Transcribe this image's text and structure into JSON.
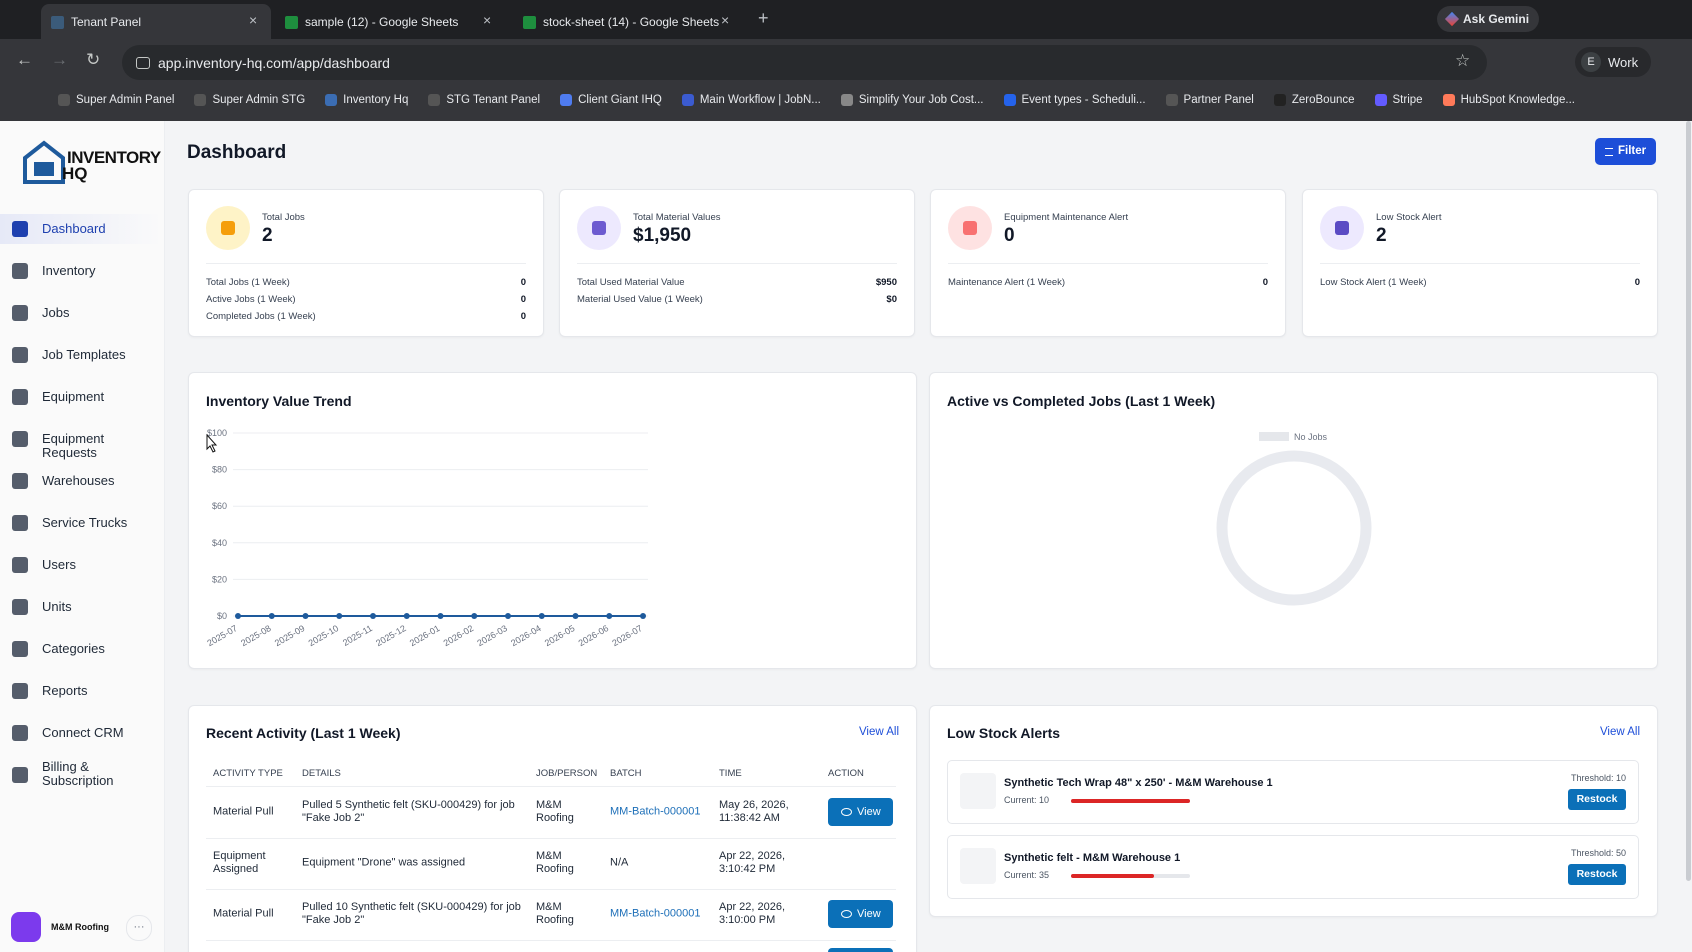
{
  "browser": {
    "tabs": [
      "Tenant Panel",
      "sample (12) - Google Sheets",
      "stock-sheet (14) - Google Sheets"
    ],
    "ask_gemini": "Ask Gemini",
    "url": "app.inventory-hq.com/app/dashboard",
    "profile_initial": "E",
    "profile_name": "Work",
    "bookmarks": [
      "Super Admin Panel",
      "Super Admin STG",
      "Inventory Hq",
      "STG Tenant Panel",
      "Client Giant IHQ",
      "Main Workflow | JobN...",
      "Simplify Your Job Cost...",
      "Event types - Scheduli...",
      "Partner Panel",
      "ZeroBounce",
      "Stripe",
      "HubSpot Knowledge..."
    ]
  },
  "sidebar": {
    "logo": [
      "INVENTORY",
      "HQ"
    ],
    "nav": [
      {
        "label": "Dashboard",
        "active": true
      },
      {
        "label": "Inventory"
      },
      {
        "label": "Jobs"
      },
      {
        "label": "Job Templates"
      },
      {
        "label": "Equipment"
      },
      {
        "label": "Equipment Requests"
      },
      {
        "label": "Warehouses"
      },
      {
        "label": "Service Trucks"
      },
      {
        "label": "Users"
      },
      {
        "label": "Units"
      },
      {
        "label": "Categories"
      },
      {
        "label": "Reports"
      },
      {
        "label": "Connect CRM"
      },
      {
        "label": "Billing & Subscription"
      }
    ],
    "user": "M&M Roofing"
  },
  "header": {
    "title": "Dashboard",
    "filter": "Filter"
  },
  "stats": [
    {
      "label": "Total Jobs",
      "value": 2,
      "color": "#f59e0b",
      "bg": "#fef3c7",
      "rows": [
        [
          "Total Jobs (1 Week)",
          0
        ],
        [
          "Active Jobs (1 Week)",
          0
        ],
        [
          "Completed Jobs (1 Week)",
          0
        ]
      ]
    },
    {
      "label": "Total Material Values",
      "value": "$1,950",
      "color": "#6d5bd0",
      "bg": "#ede9fe",
      "rows": [
        [
          "Total Used Material Value",
          "$950"
        ],
        [
          "Material Used Value (1 Week)",
          "$0"
        ]
      ]
    },
    {
      "label": "Equipment Maintenance Alert",
      "value": 0,
      "color": "#f87171",
      "bg": "#fee2e2",
      "rows": [
        [
          "Maintenance Alert (1 Week)",
          0
        ]
      ]
    },
    {
      "label": "Low Stock Alert",
      "value": 2,
      "color": "#5b4bc4",
      "bg": "#ede9fe",
      "rows": [
        [
          "Low Stock Alert (1 Week)",
          0
        ]
      ]
    }
  ],
  "trend": {
    "type": "line",
    "title": "Inventory Value Trend",
    "x": [
      "2025-07",
      "2025-08",
      "2025-09",
      "2025-10",
      "2025-11",
      "2025-12",
      "2026-01",
      "2026-02",
      "2026-03",
      "2026-04",
      "2026-05",
      "2026-06",
      "2026-07"
    ],
    "values": [
      0,
      0,
      0,
      0,
      0,
      0,
      0,
      0,
      0,
      0,
      0,
      0,
      0
    ],
    "color": "#1e5a9c",
    "ylim": [
      0,
      100
    ],
    "yticks": [
      {
        "value": 0,
        "label": "$0"
      },
      {
        "value": 20,
        "label": "$20"
      },
      {
        "value": 40,
        "label": "$40"
      },
      {
        "value": 60,
        "label": "$60"
      },
      {
        "value": 80,
        "label": "$80"
      },
      {
        "value": 100,
        "label": "$100"
      }
    ],
    "grid": true
  },
  "donut": {
    "title": "Active vs Completed Jobs (Last 1 Week)",
    "legend": "No Jobs"
  },
  "activity": {
    "title": "Recent Activity (Last 1 Week)",
    "view_all": "View All",
    "columns": [
      "ACTIVITY TYPE",
      "DETAILS",
      "JOB/PERSON",
      "BATCH",
      "TIME",
      "ACTION"
    ],
    "rows": [
      {
        "cells": [
          "Material Pull",
          "Pulled 5 Synthetic felt (SKU-000429) for job \"Fake Job 2\"",
          "M&M Roofing",
          "MM-Batch-000001",
          "May 26, 2026, 11:38:42 AM"
        ],
        "action": "View"
      },
      {
        "cells": [
          "Equipment Assigned",
          "Equipment \"Drone\" was assigned",
          "M&M Roofing",
          "N/A",
          "Apr 22, 2026, 3:10:42 PM"
        ]
      },
      {
        "cells": [
          "Material Pull",
          "Pulled 10 Synthetic felt (SKU-000429) for job \"Fake Job 2\"",
          "M&M Roofing",
          "MM-Batch-000001",
          "Apr 22, 2026, 3:10:00 PM"
        ],
        "action": "View"
      }
    ]
  },
  "low_stock": {
    "title": "Low Stock Alerts",
    "view_all": "View All",
    "items": [
      {
        "name": "Synthetic Tech Wrap 48\" x 250' - M&M Warehouse 1",
        "current": {
          "value": 10,
          "label": "Current: 10"
        },
        "threshold": {
          "value": 10,
          "label": "Threshold: 10"
        },
        "action": "Restock"
      },
      {
        "name": "Synthetic felt - M&M Warehouse 1",
        "current": {
          "value": 35,
          "label": "Current: 35"
        },
        "threshold": {
          "value": 50,
          "label": "Threshold: 50"
        },
        "action": "Restock"
      }
    ]
  }
}
